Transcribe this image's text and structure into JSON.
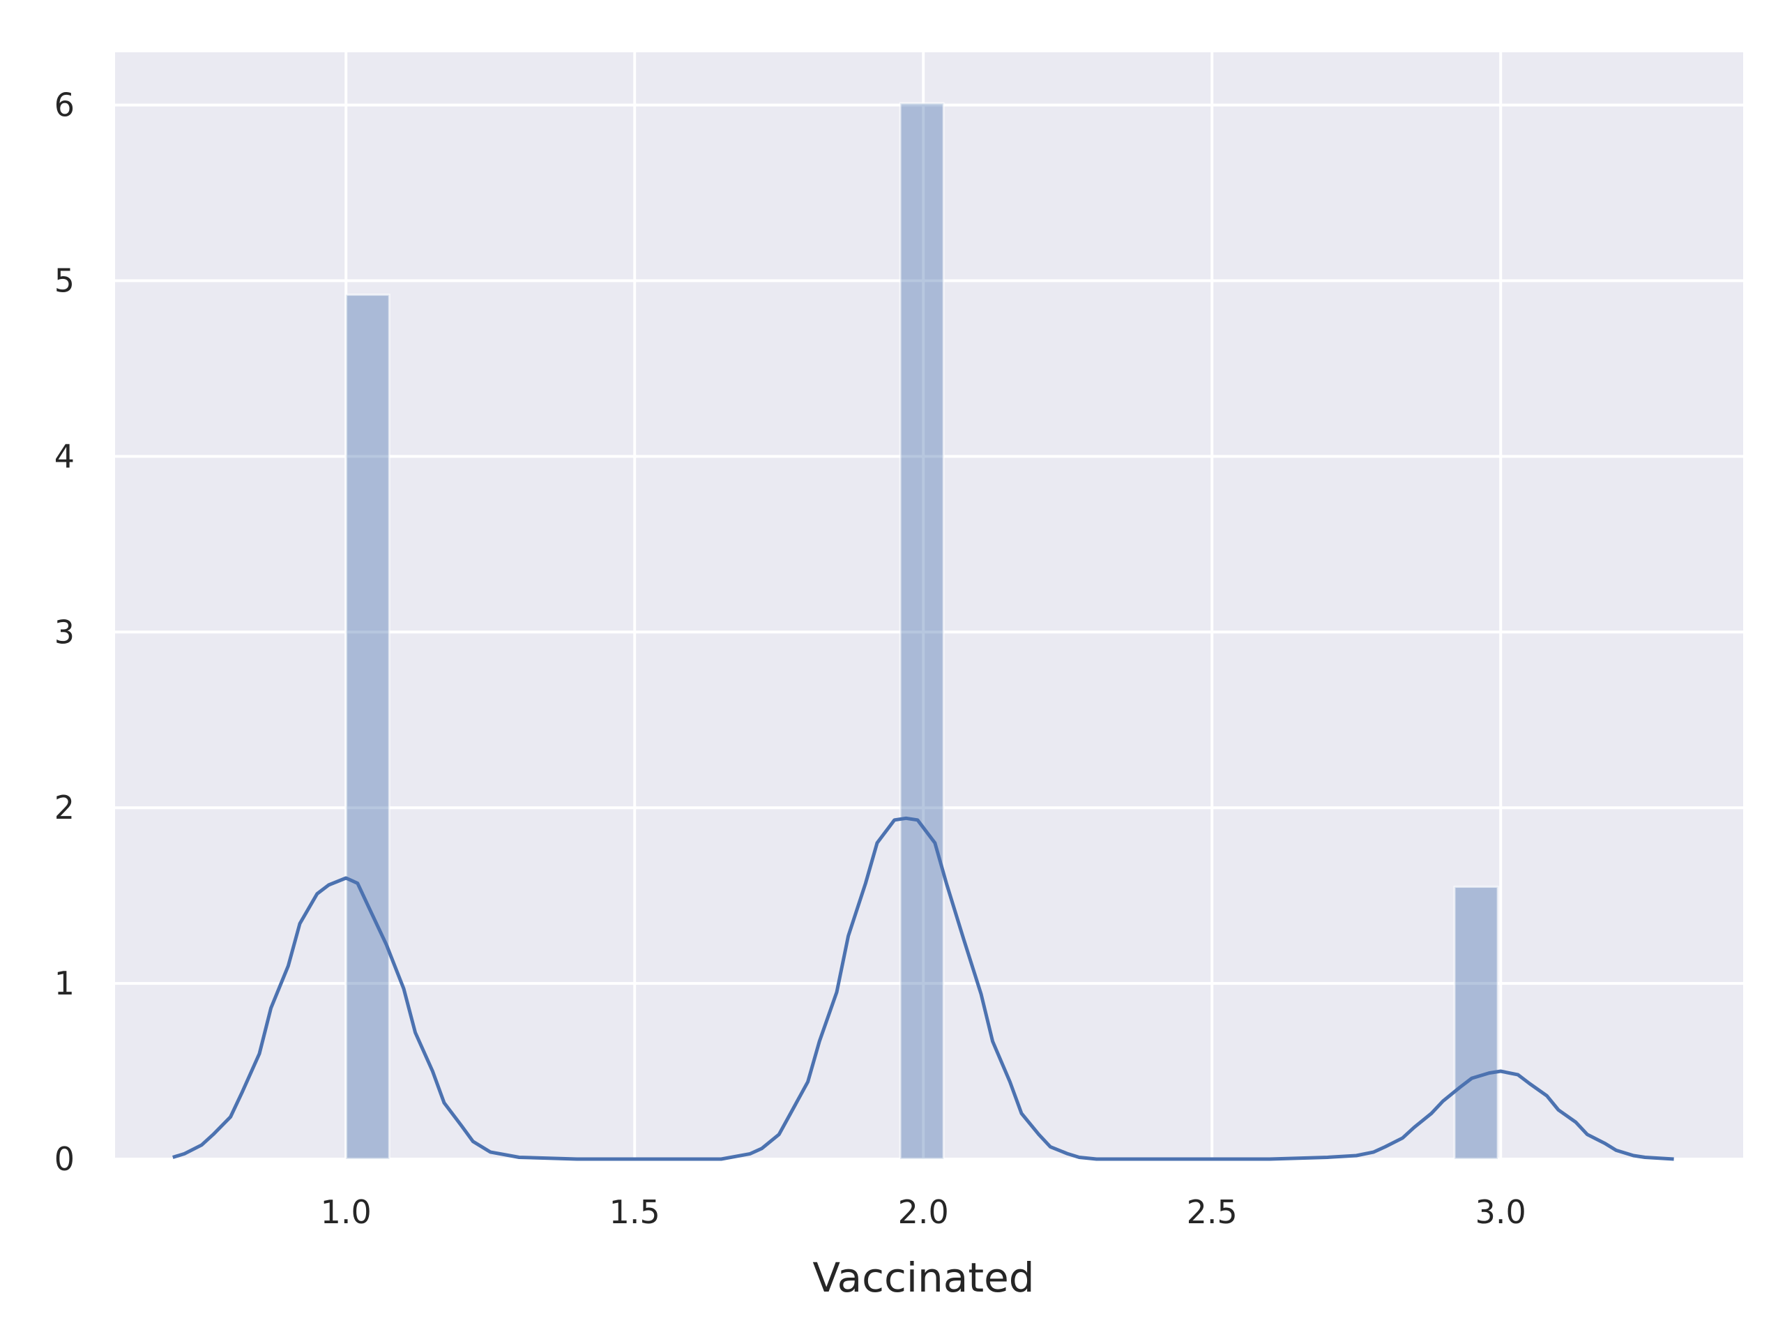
{
  "chart_data": {
    "type": "bar",
    "xlabel": "Vaccinated",
    "ylabel": "",
    "xlim": [
      0.6,
      3.42
    ],
    "ylim": [
      0,
      6.3
    ],
    "grid": true,
    "x_ticks": [
      1.0,
      1.5,
      2.0,
      2.5,
      3.0
    ],
    "x_tick_labels": [
      "1.0",
      "1.5",
      "2.0",
      "2.5",
      "3.0"
    ],
    "y_ticks": [
      0,
      1,
      2,
      3,
      4,
      5,
      6
    ],
    "y_tick_labels": [
      "0",
      "1",
      "2",
      "3",
      "4",
      "5",
      "6"
    ],
    "histogram": {
      "bins": [
        {
          "x0": 1.0,
          "x1": 1.075,
          "value": 4.92
        },
        {
          "x0": 1.96,
          "x1": 2.035,
          "value": 6.01
        },
        {
          "x0": 2.92,
          "x1": 2.995,
          "value": 1.55
        }
      ]
    },
    "kde": {
      "x": [
        0.7,
        0.72,
        0.75,
        0.77,
        0.8,
        0.82,
        0.85,
        0.87,
        0.9,
        0.92,
        0.95,
        0.97,
        1.0,
        1.02,
        1.04,
        1.07,
        1.1,
        1.12,
        1.15,
        1.17,
        1.2,
        1.22,
        1.25,
        1.3,
        1.4,
        1.5,
        1.6,
        1.65,
        1.7,
        1.72,
        1.75,
        1.77,
        1.8,
        1.82,
        1.85,
        1.87,
        1.9,
        1.92,
        1.95,
        1.97,
        1.99,
        2.02,
        2.04,
        2.07,
        2.1,
        2.12,
        2.15,
        2.17,
        2.2,
        2.22,
        2.25,
        2.27,
        2.3,
        2.4,
        2.5,
        2.6,
        2.7,
        2.75,
        2.78,
        2.8,
        2.83,
        2.85,
        2.88,
        2.9,
        2.93,
        2.95,
        2.98,
        3.0,
        3.03,
        3.05,
        3.08,
        3.1,
        3.13,
        3.15,
        3.18,
        3.2,
        3.23,
        3.25,
        3.3
      ],
      "y": [
        0.01,
        0.03,
        0.08,
        0.14,
        0.24,
        0.38,
        0.6,
        0.86,
        1.1,
        1.34,
        1.51,
        1.56,
        1.6,
        1.57,
        1.43,
        1.22,
        0.97,
        0.72,
        0.5,
        0.32,
        0.19,
        0.1,
        0.04,
        0.01,
        0.0,
        0.0,
        0.0,
        0.0,
        0.03,
        0.06,
        0.14,
        0.26,
        0.44,
        0.67,
        0.95,
        1.27,
        1.57,
        1.8,
        1.93,
        1.94,
        1.93,
        1.8,
        1.57,
        1.25,
        0.94,
        0.67,
        0.44,
        0.26,
        0.14,
        0.07,
        0.03,
        0.01,
        0.0,
        0.0,
        0.0,
        0.0,
        0.01,
        0.02,
        0.04,
        0.07,
        0.12,
        0.18,
        0.26,
        0.33,
        0.41,
        0.46,
        0.49,
        0.5,
        0.48,
        0.43,
        0.36,
        0.28,
        0.21,
        0.14,
        0.09,
        0.05,
        0.02,
        0.01,
        0.0
      ]
    },
    "colors": {
      "background": "#eaeaf2",
      "grid": "#ffffff",
      "bar_fill": "#4c72b0",
      "line": "#4c72b0"
    }
  }
}
